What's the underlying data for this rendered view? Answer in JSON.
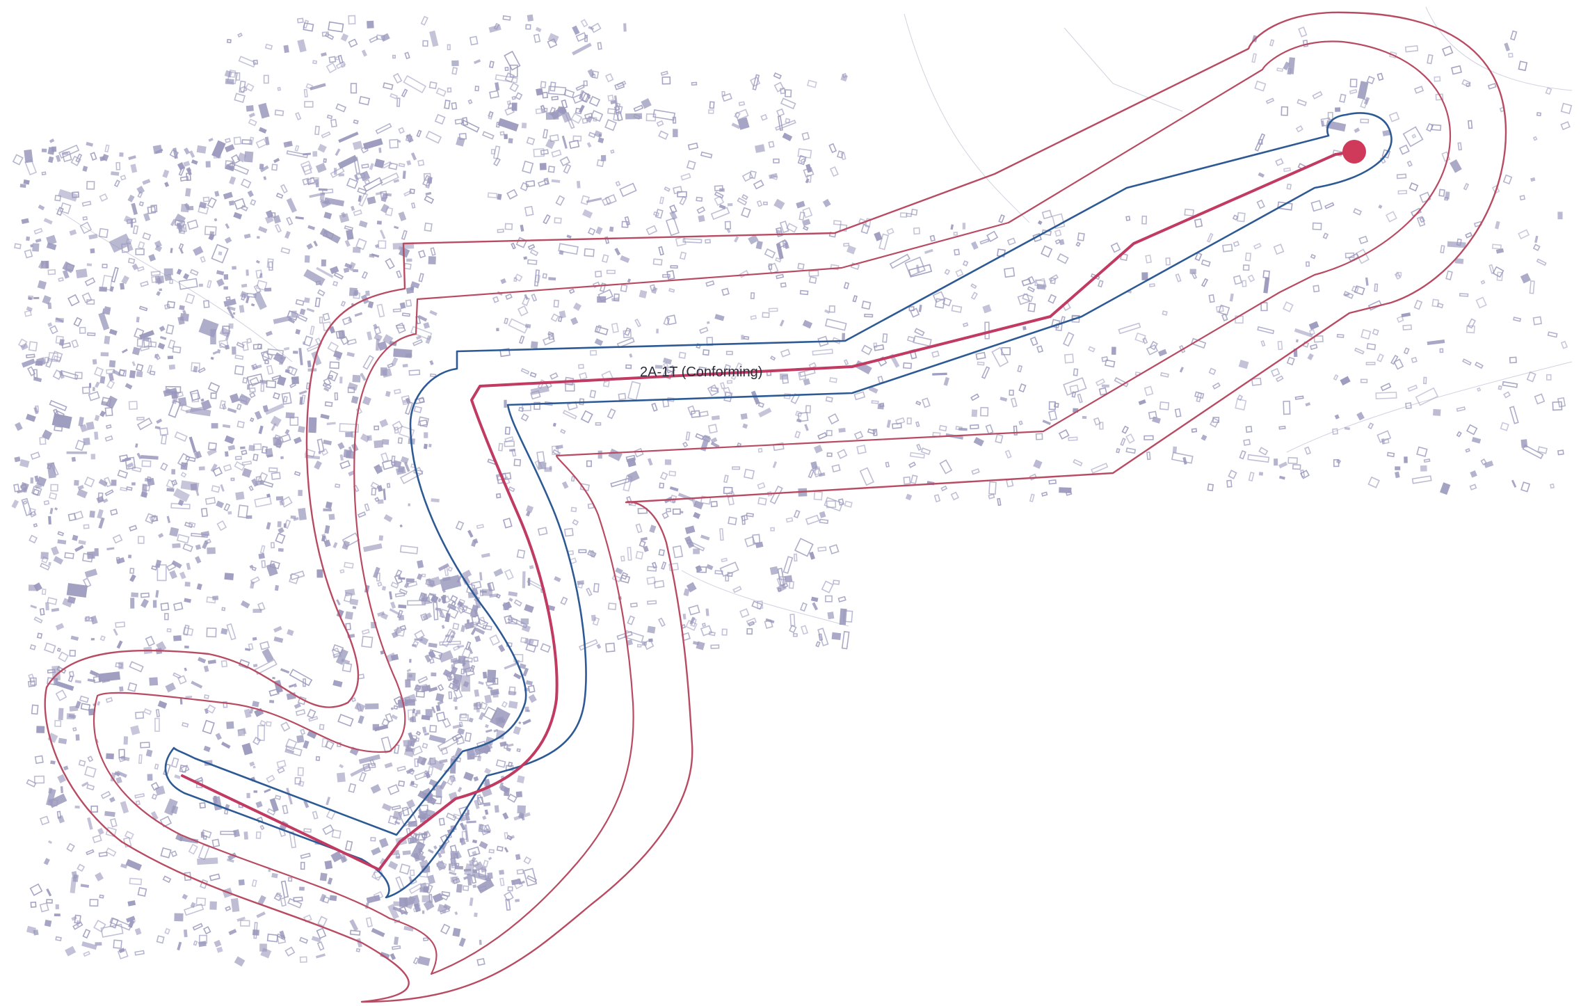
{
  "route": {
    "label": "2A-1T (Conforming)",
    "colors": {
      "centerline": "#c03a62",
      "inner_buffer": "#2d5a94",
      "outer_buffers": "#b84a62",
      "endpoint_marker": "#d03a5a",
      "buildings": "#9a98bc",
      "background": "#ffffff"
    }
  },
  "legend": [],
  "map_features": {
    "endpoint_marker_icon": "circle-marker-icon",
    "buildings_layer": "building-footprints"
  }
}
